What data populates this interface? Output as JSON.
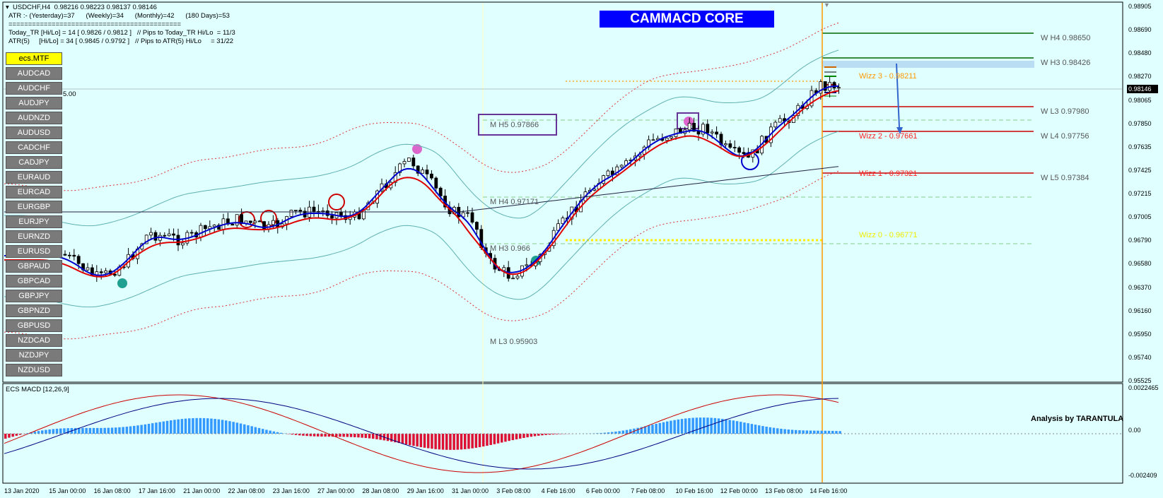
{
  "header": {
    "line1": "USDCHF,H4  0.98216 0.98223 0.98137 0.98146",
    "line2": "ATR :- (Yesterday)=37      (Weekly)=34      (Monthly)=42      (180 Days)=53",
    "divider": "============================================",
    "line3": "Today_TR [Hi/Lo] = 14 [ 0.9826 / 0.9812 ]   // Pips to Today_TR Hi/Lo  = 11/3",
    "line4": "ATR(5)     [Hi/Lo] = 34 [ 0.9845 / 0.9792 ]   // Pips to ATR(5) Hi/Lo     = 31/22"
  },
  "banner": "CAMMACD CORE",
  "left_fragment": "5.00",
  "symbols": [
    "ecs.MTF",
    "AUDCAD",
    "AUDCHF",
    "AUDJPY",
    "AUDNZD",
    "AUDUSD",
    "CADCHF",
    "CADJPY",
    "EURAUD",
    "EURCAD",
    "EURGBP",
    "EURJPY",
    "EURNZD",
    "EURUSD",
    "GBPAUD",
    "GBPCAD",
    "GBPJPY",
    "GBPNZD",
    "GBPUSD",
    "NZDCAD",
    "NZDJPY",
    "NZDUSD"
  ],
  "price_axis": [
    "0.98905",
    "0.98690",
    "0.98480",
    "0.98270",
    "0.98065",
    "0.97850",
    "0.97635",
    "0.97425",
    "0.97215",
    "0.97005",
    "0.96790",
    "0.96580",
    "0.96370",
    "0.96160",
    "0.95950",
    "0.95740",
    "0.95525"
  ],
  "bid_tag": "0.98146",
  "macd_axis": [
    "0.0022465",
    "0.00",
    "-0.002409"
  ],
  "time_axis": [
    "13 Jan 2020",
    "15 Jan 00:00",
    "16 Jan 08:00",
    "17 Jan 16:00",
    "21 Jan 00:00",
    "22 Jan 08:00",
    "23 Jan 16:00",
    "27 Jan 00:00",
    "28 Jan 08:00",
    "29 Jan 16:00",
    "31 Jan 00:00",
    "3 Feb 08:00",
    "4 Feb 16:00",
    "6 Feb 00:00",
    "7 Feb 08:00",
    "10 Feb 16:00",
    "12 Feb 00:00",
    "13 Feb 08:00",
    "14 Feb 16:00"
  ],
  "levels": {
    "w_h4": "W  H4  0.98650",
    "w_h3": "W  H3  0.98426",
    "w_l3": "W  L3  0.97980",
    "w_l4": "W  L4  0.97756",
    "w_l5": "W  L5  0.97384",
    "m_h5": "M  H5  0.97866",
    "m_h4": "M  H4  0.97171",
    "m_h3": "M  H3  0.966",
    "m_l3": "M  L3  0.95903",
    "wizz3": "Wizz 3 - 0.98211",
    "wizz2": "Wizz 2 - 0.97661",
    "wizz1": "Wizz 1 - 0.97321",
    "wizz0": "Wizz 0 - 0.96771"
  },
  "macd": {
    "title": "ECS MACD [12,26,9]",
    "credit": "Analysis by TARANTULA"
  },
  "colors": {
    "background": "#E0FFFF",
    "fast_ma": "#0000CC",
    "slow_ma": "#E00000",
    "envelope": "#5FB0B0",
    "vline": "#FF9900",
    "macd_pos": "#3399FF",
    "macd_neg": "#DD1133"
  }
}
